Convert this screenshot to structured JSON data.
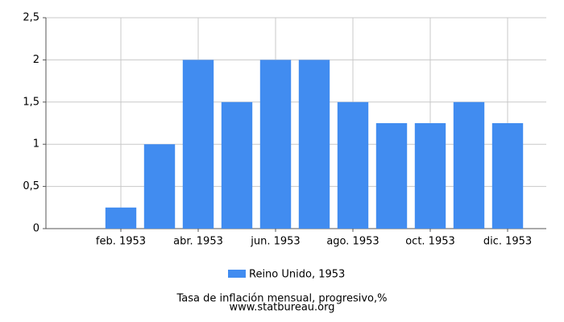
{
  "chart_data": {
    "type": "bar",
    "categories": [
      null,
      "feb. 1953",
      null,
      "abr. 1953",
      null,
      "jun. 1953",
      null,
      "ago. 1953",
      null,
      "oct. 1953",
      null,
      "dic. 1953"
    ],
    "series": [
      {
        "name": "Reino Unido, 1953",
        "color": "#418cf0",
        "values": [
          0,
          0.25,
          1,
          2,
          1.5,
          2,
          2,
          1.5,
          1.25,
          1.25,
          1.5,
          1.25
        ]
      }
    ],
    "ylim": [
      0,
      2.5
    ],
    "yticks": [
      0,
      {
        "value": 0.5,
        "label": "0,5"
      },
      1,
      {
        "value": 1.5,
        "label": "1,5"
      },
      2,
      {
        "value": 2.5,
        "label": "2,5"
      }
    ],
    "grid": true,
    "legend": "bottom",
    "xlabel": "Tasa de inflación mensual, progresivo,%",
    "source": "www.statbureau.org"
  }
}
